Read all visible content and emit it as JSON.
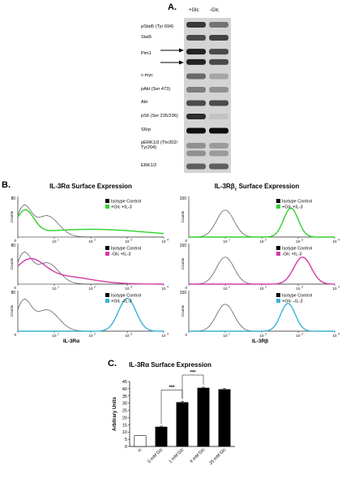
{
  "panel_a": {
    "letter": "A.",
    "lanes": [
      "+Glc",
      "-Glc"
    ],
    "blots": [
      {
        "label": "pStat5 (Tyr 694)"
      },
      {
        "label": "Stat5"
      },
      {
        "label": "Pim1"
      },
      {
        "label": "c-myc"
      },
      {
        "label": "pAkt (Ser 473)"
      },
      {
        "label": "Akt"
      },
      {
        "label": "pS6 (Ser 235/236)"
      },
      {
        "label": "S6rp"
      },
      {
        "label": "pERK1/2 (Thr202/\nTyr204)"
      },
      {
        "label": "ERK1/2"
      }
    ]
  },
  "panel_b": {
    "letter": "B.",
    "left_title": "IL-3Rα Surface Expression",
    "right_title_main": "IL-3Rβ",
    "right_title_sub": "c",
    "right_title_rest": " Surface Expression",
    "ylabel": "Counts",
    "isotype_label": "Isotype Control",
    "left_xlabel": "IL-3Rα",
    "right_xlabel": "IL-3Rβ",
    "left_ymax": "80",
    "right_ymax": "150",
    "tick_labels": [
      "10",
      "10",
      "10",
      "10"
    ],
    "tick_exps": [
      "1",
      "2",
      "3",
      "4"
    ],
    "rows": [
      {
        "label": "+Glc +IL-3",
        "color": "#2fd12f"
      },
      {
        "label": "-Glc +IL-3",
        "color": "#d33aa8"
      },
      {
        "label": "+Glc –IL-3",
        "color": "#3ab3d6"
      }
    ]
  },
  "panel_c": {
    "letter": "C.",
    "chart_data": {
      "type": "bar",
      "title": "IL-3Rα Surface Expression",
      "ylabel": "Arbitrary Units",
      "categories": [
        "ic",
        "0 mM Glc",
        "1 mM Glc",
        "4 mM Glc",
        "25 mM Glc"
      ],
      "values": [
        7.5,
        13.5,
        30.5,
        40.5,
        39.5
      ],
      "errors": [
        0,
        0.6,
        0.8,
        0.6,
        0.7
      ],
      "fills": [
        "#ffffff",
        "#000000",
        "#000000",
        "#000000",
        "#000000"
      ],
      "ylim": [
        0,
        45
      ],
      "yticks": [
        0,
        5,
        10,
        15,
        20,
        25,
        30,
        35,
        40,
        45
      ],
      "significance": [
        {
          "from": 1,
          "to": 2,
          "label": "***"
        },
        {
          "from": 2,
          "to": 3,
          "label": "***"
        }
      ]
    }
  }
}
